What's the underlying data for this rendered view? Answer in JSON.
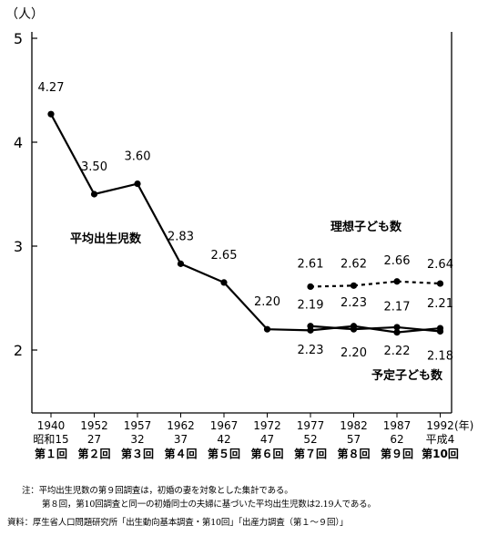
{
  "chart_data": {
    "type": "line",
    "y_unit": "（人）",
    "year_suffix": "(年)",
    "ylim": [
      1.6,
      5.05
    ],
    "yticks": [
      2,
      3,
      4,
      5
    ],
    "grid": false,
    "x": [
      {
        "year": "1940",
        "era": "昭和15",
        "survey": "第１回"
      },
      {
        "year": "1952",
        "era": "27",
        "survey": "第２回"
      },
      {
        "year": "1957",
        "era": "32",
        "survey": "第３回"
      },
      {
        "year": "1962",
        "era": "37",
        "survey": "第４回"
      },
      {
        "year": "1967",
        "era": "42",
        "survey": "第５回"
      },
      {
        "year": "1972",
        "era": "47",
        "survey": "第６回"
      },
      {
        "year": "1977",
        "era": "52",
        "survey": "第７回"
      },
      {
        "year": "1982",
        "era": "57",
        "survey": "第８回"
      },
      {
        "year": "1987",
        "era": "62",
        "survey": "第９回"
      },
      {
        "year": "1992",
        "era": "平成4",
        "survey": "第10回"
      }
    ],
    "series": [
      {
        "name": "平均出生児数",
        "style": "solid",
        "values": [
          4.27,
          3.5,
          3.6,
          2.83,
          2.65,
          2.2,
          2.19,
          2.23,
          2.17,
          2.21
        ]
      },
      {
        "name": "理想子ども数",
        "style": "dashed",
        "values": [
          null,
          null,
          null,
          null,
          null,
          null,
          2.61,
          2.62,
          2.66,
          2.64
        ]
      },
      {
        "name": "予定子ども数",
        "style": "solid",
        "values": [
          null,
          null,
          null,
          null,
          null,
          null,
          2.23,
          2.2,
          2.22,
          2.18
        ]
      }
    ],
    "labels": [
      [
        "4.27",
        "3.50",
        "3.60",
        "2.83",
        "2.65",
        "2.20",
        "2.19",
        "2.23",
        "2.17",
        "2.21"
      ],
      [
        null,
        null,
        null,
        null,
        null,
        null,
        "2.61",
        "2.62",
        "2.66",
        "2.64"
      ],
      [
        null,
        null,
        null,
        null,
        null,
        null,
        "2.23",
        "2.20",
        "2.22",
        "2.18"
      ]
    ]
  },
  "notes": {
    "note1": "注：平均出生児数の第９回調査は，初婚の妻を対象とした集計である。",
    "note2": "第８回，第10回調査と同一の初婚同士の夫婦に基づいた平均出生児数は2.19人である。",
    "source": "資料：厚生省人口問題研究所「出生動向基本調査・第10回」「出産力調査（第１～９回）」"
  }
}
